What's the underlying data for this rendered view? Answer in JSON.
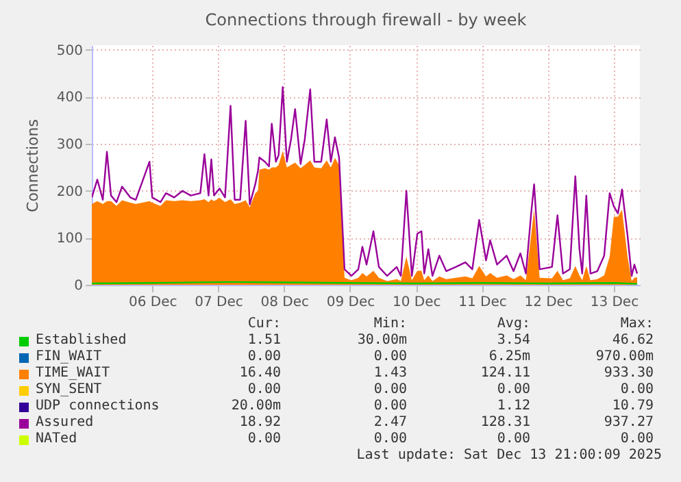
{
  "chart_data": {
    "type": "line",
    "title": "Connections through firewall - by week",
    "ylabel": "Connections",
    "xlim": [
      "2025-12-05T14:00",
      "2025-12-13T21:30"
    ],
    "xticks": [
      {
        "value": "2025-12-06T12:00",
        "label": "06 Dec"
      },
      {
        "value": "2025-12-07T12:00",
        "label": "07 Dec"
      },
      {
        "value": "2025-12-08T12:00",
        "label": "08 Dec"
      },
      {
        "value": "2025-12-09T12:00",
        "label": "09 Dec"
      },
      {
        "value": "2025-12-10T12:00",
        "label": "10 Dec"
      },
      {
        "value": "2025-12-11T12:00",
        "label": "11 Dec"
      },
      {
        "value": "2025-12-12T12:00",
        "label": "12 Dec"
      },
      {
        "value": "2025-12-13T12:00",
        "label": "13 Dec"
      }
    ],
    "ylim": [
      0,
      510
    ],
    "yticks": [
      0,
      100,
      200,
      300,
      400,
      500
    ],
    "grid": true,
    "legend": "bottom",
    "x": [
      "2025-12-05T14:00",
      "2025-12-05T16:00",
      "2025-12-05T18:00",
      "2025-12-05T19:30",
      "2025-12-05T21:00",
      "2025-12-05T23:00",
      "2025-12-06T01:00",
      "2025-12-06T04:00",
      "2025-12-06T06:00",
      "2025-12-06T11:00",
      "2025-12-06T12:00",
      "2025-12-06T15:00",
      "2025-12-06T17:00",
      "2025-12-06T20:00",
      "2025-12-06T23:00",
      "2025-12-07T02:00",
      "2025-12-07T05:30",
      "2025-12-07T07:00",
      "2025-12-07T08:30",
      "2025-12-07T09:30",
      "2025-12-07T10:30",
      "2025-12-07T12:30",
      "2025-12-07T14:30",
      "2025-12-07T16:30",
      "2025-12-07T18:00",
      "2025-12-07T20:00",
      "2025-12-07T22:00",
      "2025-12-07T23:30",
      "2025-12-08T01:30",
      "2025-12-08T02:30",
      "2025-12-08T03:00",
      "2025-12-08T05:00",
      "2025-12-08T06:30",
      "2025-12-08T07:30",
      "2025-12-08T09:00",
      "2025-12-08T10:00",
      "2025-12-08T11:30",
      "2025-12-08T13:00",
      "2025-12-08T14:30",
      "2025-12-08T16:00",
      "2025-12-08T18:00",
      "2025-12-08T19:30",
      "2025-12-08T21:30",
      "2025-12-08T23:00",
      "2025-12-09T01:30",
      "2025-12-09T03:30",
      "2025-12-09T05:00",
      "2025-12-09T06:30",
      "2025-12-09T08:00",
      "2025-12-09T10:00",
      "2025-12-09T12:30",
      "2025-12-09T15:00",
      "2025-12-09T16:30",
      "2025-12-09T18:00",
      "2025-12-09T20:30",
      "2025-12-09T22:30",
      "2025-12-10T01:30",
      "2025-12-10T05:00",
      "2025-12-10T06:30",
      "2025-12-10T08:30",
      "2025-12-10T10:30",
      "2025-12-10T12:30",
      "2025-12-10T14:00",
      "2025-12-10T15:00",
      "2025-12-10T16:30",
      "2025-12-10T18:00",
      "2025-12-10T20:30",
      "2025-12-10T23:00",
      "2025-12-11T02:30",
      "2025-12-11T06:00",
      "2025-12-11T08:30",
      "2025-12-11T11:00",
      "2025-12-11T13:30",
      "2025-12-11T15:00",
      "2025-12-11T17:30",
      "2025-12-11T21:00",
      "2025-12-11T23:30",
      "2025-12-12T02:00",
      "2025-12-12T04:00",
      "2025-12-12T06:00",
      "2025-12-12T07:00",
      "2025-12-12T09:00",
      "2025-12-12T13:30",
      "2025-12-12T15:30",
      "2025-12-12T17:30",
      "2025-12-12T20:00",
      "2025-12-12T22:00",
      "2025-12-12T23:30",
      "2025-12-13T00:30",
      "2025-12-13T02:00",
      "2025-12-13T03:30",
      "2025-12-13T06:00",
      "2025-12-13T08:30",
      "2025-12-13T10:30",
      "2025-12-13T12:00",
      "2025-12-13T13:30",
      "2025-12-13T15:00",
      "2025-12-13T17:00",
      "2025-12-13T18:30",
      "2025-12-13T19:30",
      "2025-12-13T20:30"
    ],
    "series": [
      {
        "name": "Established",
        "color": "#00cc00",
        "x": [
          "2025-12-05T14:00",
          "2025-12-06T12:00",
          "2025-12-07T16:30",
          "2025-12-08T11:30",
          "2025-12-09T10:00",
          "2025-12-10T12:00",
          "2025-12-11T12:00",
          "2025-12-12T12:00",
          "2025-12-13T12:00",
          "2025-12-13T20:30"
        ],
        "values": [
          3,
          4,
          6,
          5,
          4,
          3,
          4,
          3,
          4,
          2
        ]
      },
      {
        "name": "FIN_WAIT",
        "color": "#0066b3",
        "values": [
          null,
          null,
          null,
          null,
          null,
          null,
          null,
          null,
          null,
          null,
          null,
          null,
          null,
          null,
          null,
          null,
          null,
          null,
          null,
          null,
          null,
          null,
          null,
          null,
          null,
          null,
          null,
          null,
          null,
          null,
          null,
          null,
          null,
          null,
          null,
          null,
          null,
          null,
          null,
          null,
          null,
          null,
          null,
          null,
          null,
          null,
          null,
          null,
          null,
          null,
          null,
          null,
          null,
          null,
          null,
          null,
          null,
          null,
          null,
          null,
          null,
          null,
          null,
          null,
          null,
          null,
          null,
          null,
          null,
          null,
          null,
          null,
          null,
          null,
          null,
          null,
          null,
          null,
          null,
          null,
          null,
          null,
          null,
          null,
          null,
          null,
          null,
          null,
          null,
          null,
          null,
          null,
          null,
          null,
          null,
          null,
          null,
          null,
          null,
          null,
          null
        ]
      },
      {
        "name": "TIME_WAIT",
        "color": "#ff8000",
        "type": "area",
        "values": [
          172,
          178,
          172,
          178,
          178,
          168,
          180,
          175,
          172,
          178,
          175,
          168,
          180,
          178,
          180,
          178,
          180,
          182,
          176,
          182,
          178,
          185,
          176,
          182,
          172,
          175,
          180,
          165,
          195,
          200,
          245,
          248,
          245,
          250,
          250,
          255,
          285,
          250,
          255,
          260,
          248,
          255,
          265,
          250,
          248,
          265,
          250,
          270,
          255,
          15,
          10,
          15,
          25,
          18,
          30,
          15,
          8,
          12,
          8,
          60,
          10,
          30,
          30,
          10,
          20,
          8,
          18,
          12,
          15,
          18,
          14,
          40,
          18,
          25,
          15,
          20,
          12,
          20,
          10,
          110,
          160,
          15,
          14,
          30,
          10,
          14,
          40,
          20,
          10,
          40,
          10,
          12,
          20,
          60,
          145,
          145,
          160,
          60,
          8,
          15,
          16
        ]
      },
      {
        "name": "SYN_SENT",
        "color": "#ffcc00",
        "values": [
          null,
          null,
          null,
          null,
          null,
          null,
          null,
          null,
          null,
          null,
          null,
          null,
          null,
          null,
          null,
          null,
          null,
          null,
          null,
          null,
          null,
          null,
          null,
          null,
          null,
          null,
          null,
          null,
          null,
          null,
          null,
          null,
          null,
          null,
          null,
          null,
          null,
          null,
          null,
          null,
          null,
          null,
          null,
          null,
          null,
          null,
          null,
          null,
          null,
          null,
          null,
          null,
          null,
          null,
          null,
          null,
          null,
          null,
          null,
          null,
          null,
          null,
          null,
          null,
          null,
          null,
          null,
          null,
          null,
          null,
          null,
          null,
          null,
          null,
          null,
          null,
          null,
          null,
          null,
          null,
          null,
          null,
          null,
          null,
          null,
          null,
          null,
          null,
          null,
          null,
          null,
          null,
          null,
          null,
          null,
          null,
          null,
          null,
          null,
          null,
          null
        ]
      },
      {
        "name": "UDP connections",
        "color": "#330099",
        "values": [
          null,
          null,
          null,
          null,
          null,
          null,
          null,
          null,
          null,
          null,
          null,
          null,
          null,
          null,
          null,
          null,
          null,
          null,
          null,
          null,
          null,
          null,
          null,
          null,
          null,
          null,
          null,
          null,
          null,
          null,
          null,
          null,
          null,
          null,
          null,
          null,
          null,
          null,
          null,
          null,
          null,
          null,
          null,
          null,
          null,
          null,
          null,
          null,
          null,
          null,
          null,
          null,
          null,
          null,
          null,
          null,
          null,
          null,
          null,
          null,
          null,
          null,
          null,
          null,
          null,
          null,
          null,
          null,
          null,
          null,
          null,
          null,
          null,
          null,
          null,
          null,
          null,
          null,
          null,
          null,
          null,
          null,
          null,
          null,
          null,
          null,
          null,
          null,
          null,
          null,
          null,
          null,
          null,
          null,
          null,
          null,
          null,
          null,
          null,
          null,
          null
        ]
      },
      {
        "name": "Assured",
        "color": "#990099",
        "values": [
          186,
          224,
          181,
          283,
          190,
          176,
          209,
          186,
          181,
          262,
          186,
          176,
          195,
          186,
          200,
          190,
          195,
          278,
          190,
          267,
          190,
          205,
          186,
          381,
          181,
          181,
          349,
          171,
          214,
          243,
          271,
          262,
          252,
          343,
          262,
          276,
          421,
          262,
          309,
          374,
          257,
          309,
          416,
          262,
          262,
          352,
          262,
          314,
          271,
          33,
          19,
          33,
          81,
          43,
          114,
          38,
          19,
          38,
          19,
          200,
          19,
          109,
          114,
          24,
          76,
          19,
          62,
          29,
          38,
          48,
          33,
          138,
          52,
          95,
          43,
          62,
          29,
          67,
          24,
          157,
          214,
          33,
          38,
          148,
          24,
          33,
          231,
          76,
          24,
          190,
          24,
          29,
          62,
          195,
          167,
          152,
          203,
          105,
          19,
          43,
          24
        ]
      },
      {
        "name": "NATed",
        "color": "#ccff00",
        "values": [
          null,
          null,
          null,
          null,
          null,
          null,
          null,
          null,
          null,
          null,
          null,
          null,
          null,
          null,
          null,
          null,
          null,
          null,
          null,
          null,
          null,
          null,
          null,
          null,
          null,
          null,
          null,
          null,
          null,
          null,
          null,
          null,
          null,
          null,
          null,
          null,
          null,
          null,
          null,
          null,
          null,
          null,
          null,
          null,
          null,
          null,
          null,
          null,
          null,
          null,
          null,
          null,
          null,
          null,
          null,
          null,
          null,
          null,
          null,
          null,
          null,
          null,
          null,
          null,
          null,
          null,
          null,
          null,
          null,
          null,
          null,
          null,
          null,
          null,
          null,
          null,
          null,
          null,
          null,
          null,
          null,
          null,
          null,
          null,
          null,
          null,
          null,
          null,
          null,
          null,
          null,
          null,
          null,
          null,
          null,
          null,
          null,
          null,
          null,
          null,
          null
        ]
      }
    ],
    "annotations": [
      "Cur:",
      "Min:",
      "Avg:",
      "Max:",
      "1.51",
      "30.00m",
      "3.54",
      "46.62",
      "0.00",
      "0.00",
      "6.25m",
      "970.00m",
      "16.40",
      "1.43",
      "124.11",
      "933.30",
      "0.00",
      "0.00",
      "0.00",
      "0.00",
      "20.00m",
      "0.00",
      "1.12",
      "10.79",
      "18.92",
      "2.47",
      "128.31",
      "937.27",
      "0.00",
      "0.00",
      "0.00",
      "0.00",
      "Last update: Sat Dec 13 21:00:09 2025"
    ]
  }
}
